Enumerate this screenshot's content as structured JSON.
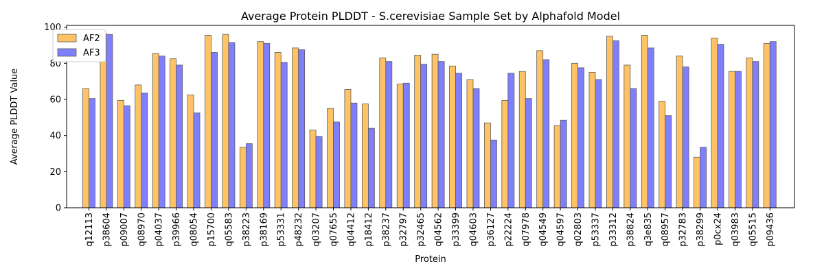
{
  "chart_data": {
    "type": "bar",
    "title": "Average Protein PLDDT - S.cerevisiae Sample Set by Alphafold Model",
    "xlabel": "Protein",
    "ylabel": "Average PLDDT Value",
    "ylim": [
      0,
      101
    ],
    "yticks": [
      0,
      20,
      40,
      60,
      80,
      100
    ],
    "grid": false,
    "legend_position": "top-left",
    "categories": [
      "q12113",
      "p38604",
      "p09007",
      "q08970",
      "p04037",
      "p39966",
      "q08054",
      "p15700",
      "q05583",
      "p38223",
      "p38169",
      "p53331",
      "p48232",
      "q03207",
      "q07655",
      "q04412",
      "p18412",
      "p38237",
      "p32797",
      "p32465",
      "q04562",
      "p33399",
      "q04603",
      "p36127",
      "p22224",
      "q07978",
      "q04549",
      "q04597",
      "q02803",
      "p53337",
      "p33312",
      "p38824",
      "q3e835",
      "q08957",
      "p32783",
      "p38299",
      "p0cx24",
      "q03983",
      "q05515",
      "p09436"
    ],
    "series": [
      {
        "name": "AF2",
        "color": "#ffc366",
        "values": [
          66.0,
          96.5,
          59.5,
          68.0,
          85.5,
          82.5,
          62.5,
          95.5,
          96.0,
          33.5,
          92.0,
          86.0,
          88.5,
          43.0,
          55.0,
          65.5,
          57.5,
          83.0,
          68.5,
          84.5,
          85.0,
          78.5,
          71.0,
          47.0,
          59.5,
          75.5,
          87.0,
          45.5,
          80.0,
          75.0,
          95.0,
          79.0,
          95.5,
          59.0,
          84.0,
          28.0,
          94.0,
          75.5,
          83.0,
          91.0
        ]
      },
      {
        "name": "AF3",
        "color": "#7f7ffc",
        "values": [
          60.5,
          96.0,
          56.5,
          63.5,
          84.0,
          79.0,
          52.5,
          86.0,
          91.5,
          35.5,
          91.0,
          80.5,
          87.5,
          39.5,
          47.5,
          58.0,
          44.0,
          81.0,
          69.0,
          79.5,
          81.0,
          74.5,
          66.0,
          37.5,
          74.5,
          60.5,
          82.0,
          48.5,
          77.5,
          71.0,
          92.5,
          66.0,
          88.5,
          51.0,
          78.0,
          33.5,
          90.5,
          75.5,
          81.0,
          92.0
        ]
      }
    ]
  }
}
